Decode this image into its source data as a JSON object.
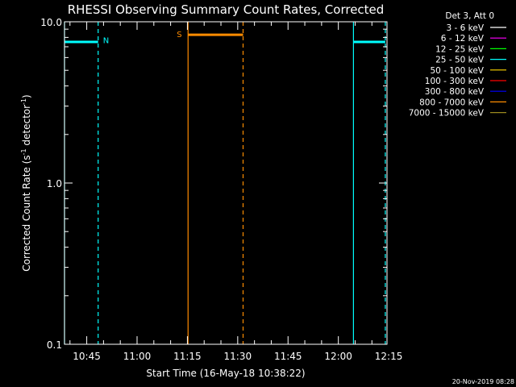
{
  "chart_data": {
    "type": "line",
    "title": "RHESSI Observing Summary Count Rates, Corrected",
    "xlabel": "Start Time (16-May-18 10:38:22)",
    "ylabel_main": "Corrected Count Rate (s",
    "ylabel_sup1": "-1",
    "ylabel_mid": " detector",
    "ylabel_sup2": "-1",
    "ylabel_end": ")",
    "xrange_min": [
      38.37,
      134.5
    ],
    "x_units": "minutes after 10:00 on 16-May-18",
    "yscale": "log",
    "ylim": [
      0.1,
      10.0
    ],
    "y_ticks": [
      {
        "value": 0.1,
        "label": "0.1"
      },
      {
        "value": 1.0,
        "label": "1.0"
      },
      {
        "value": 10.0,
        "label": "10.0"
      }
    ],
    "x_ticks": [
      {
        "value": 45,
        "label": "10:45"
      },
      {
        "value": 60,
        "label": "11:00"
      },
      {
        "value": 75,
        "label": "11:15"
      },
      {
        "value": 90,
        "label": "11:30"
      },
      {
        "value": 105,
        "label": "11:45"
      },
      {
        "value": 120,
        "label": "12:00"
      },
      {
        "value": 135,
        "label": "12:15"
      }
    ],
    "legend_header": "Det 3, Att 0",
    "legend_placement": "top-right outside plot",
    "legend": [
      {
        "label": "3 - 6 keV",
        "color": "#ffffff"
      },
      {
        "label": "6 - 12 keV",
        "color": "#ff00ff"
      },
      {
        "label": "12 - 25 keV",
        "color": "#00ff00"
      },
      {
        "label": "25 - 50 keV",
        "color": "#00ffff"
      },
      {
        "label": "50 - 100 keV",
        "color": "#ffd700"
      },
      {
        "label": "100 - 300 keV",
        "color": "#ff0000"
      },
      {
        "label": "300 - 800 keV",
        "color": "#0000ff"
      },
      {
        "label": "800 - 7000 keV",
        "color": "#ff8c00"
      },
      {
        "label": "7000 - 15000 keV",
        "color": "#9b8a1e"
      }
    ],
    "series": [
      {
        "name": "25 - 50 keV",
        "color": "#00ffff",
        "segments": [
          {
            "x": [
              38.37,
              48.4
            ],
            "y": [
              7.5,
              7.5
            ]
          },
          {
            "x": [
              124.5,
              134.0
            ],
            "y": [
              7.5,
              7.5
            ]
          }
        ]
      },
      {
        "name": "800 - 7000 keV",
        "color": "#ff8c00",
        "segments": [
          {
            "x": [
              75.2,
              91.6
            ],
            "y": [
              8.3,
              8.3
            ]
          }
        ]
      }
    ],
    "markers": [
      {
        "x": 38.37,
        "style": "solid",
        "color": "#00ffff"
      },
      {
        "x": 48.4,
        "style": "dashed",
        "color": "#00ffff"
      },
      {
        "x": 75.2,
        "style": "solid",
        "color": "#ff8c00"
      },
      {
        "x": 91.6,
        "style": "dashed",
        "color": "#ff8c00"
      },
      {
        "x": 124.5,
        "style": "solid",
        "color": "#00ffff"
      },
      {
        "x": 134.0,
        "style": "dashed",
        "color": "#00ffff"
      }
    ],
    "annotations": [
      {
        "text": "N",
        "x": 48.4,
        "y": 7.9,
        "color": "#00ffff"
      },
      {
        "text": "S",
        "x": 75.2,
        "y": 8.6,
        "color": "#ff8c00"
      }
    ],
    "footer_date": "20-Nov-2019 08:28"
  }
}
